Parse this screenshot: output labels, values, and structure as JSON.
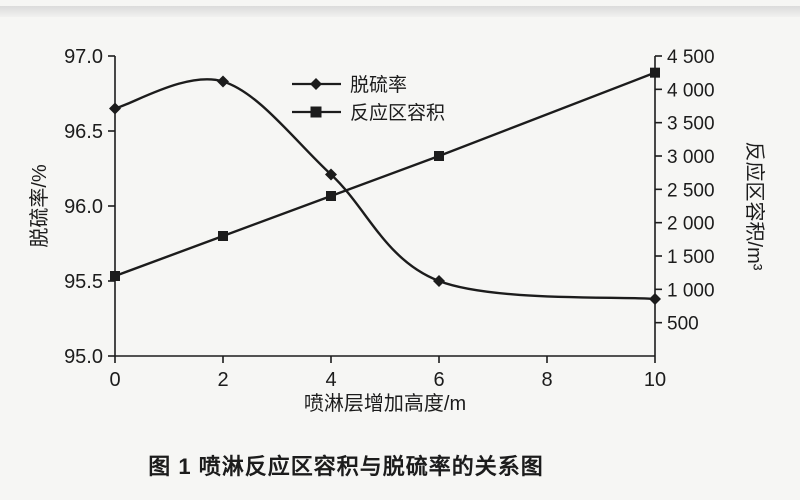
{
  "caption": "图 1  喷淋反应区容积与脱硫率的关系图",
  "chart_data": {
    "type": "line",
    "x": [
      0,
      2,
      4,
      6,
      10
    ],
    "series": [
      {
        "name": "脱硫率",
        "axis": "left",
        "marker": "diamond",
        "values": [
          96.65,
          96.83,
          96.21,
          95.5,
          95.38
        ]
      },
      {
        "name": "反应区容积",
        "axis": "right",
        "marker": "square",
        "values": [
          1200,
          1800,
          2400,
          3000,
          4250
        ]
      }
    ],
    "x_axis": {
      "label": "喷淋层增加高度/m",
      "min": 0,
      "max": 10,
      "ticks": [
        0,
        2,
        4,
        6,
        8,
        10
      ],
      "tick_labels": [
        "0",
        "2",
        "4",
        "6",
        "8",
        "10"
      ]
    },
    "left_axis": {
      "label": "脱硫率/%",
      "min": 95.0,
      "max": 97.0,
      "ticks": [
        95.0,
        95.5,
        96.0,
        96.5,
        97.0
      ],
      "tick_labels": [
        "95.0",
        "95.5",
        "96.0",
        "96.5",
        "97.0"
      ]
    },
    "right_axis": {
      "label": "反应区容积/m³",
      "min": 0,
      "max": 4500,
      "ticks": [
        500,
        1000,
        1500,
        2000,
        2500,
        3000,
        3500,
        4000,
        4500
      ],
      "tick_labels": [
        "500",
        "1 000",
        "1 500",
        "2 000",
        "2 500",
        "3 000",
        "3 500",
        "4 000",
        "4 500"
      ]
    },
    "legend": {
      "position": "inside-top-center",
      "entries": [
        "脱硫率",
        "反应区容积"
      ]
    },
    "grid": false,
    "line_color": "#1c1c1c"
  }
}
